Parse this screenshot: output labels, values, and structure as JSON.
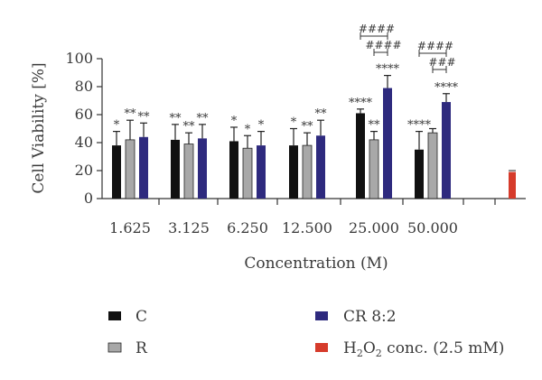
{
  "chart_data": {
    "type": "bar",
    "xlabel": "Concentration (M)",
    "ylabel": "Cell Viability [%]",
    "ylim": [
      0,
      100
    ],
    "yticks": [
      0,
      20,
      40,
      60,
      80,
      100
    ],
    "categories": [
      "1.625",
      "3.125",
      "6.250",
      "12.500",
      "25.000",
      "50.000"
    ],
    "series": [
      {
        "name": "C",
        "color": "#111111",
        "values": [
          38,
          42,
          41,
          38,
          61,
          35
        ],
        "errors": [
          10,
          11,
          10,
          12,
          3,
          13
        ],
        "annotations": [
          "*",
          "**",
          "*",
          "*",
          "****",
          "****"
        ]
      },
      {
        "name": "R",
        "color": "#a8a8a8",
        "values": [
          42,
          39,
          36,
          38,
          42,
          47
        ],
        "errors": [
          14,
          8,
          9,
          9,
          6,
          3
        ],
        "annotations": [
          "**",
          "**",
          "*",
          "**",
          "**",
          ""
        ]
      },
      {
        "name": "CR 8:2",
        "color": "#2e2a7e",
        "values": [
          44,
          43,
          38,
          45,
          79,
          69
        ],
        "errors": [
          10,
          10,
          10,
          11,
          9,
          6
        ],
        "annotations": [
          "**",
          "**",
          "*",
          "**",
          "****",
          "****"
        ]
      }
    ],
    "control": {
      "name_main": "H",
      "name_sub1": "2",
      "name_mid": "O",
      "name_sub2": "2",
      "name_rest": " conc. (2.5 mM)",
      "color": "#d63b2b",
      "value": 19,
      "error": 1
    },
    "brackets": [
      {
        "category": "25.000",
        "label": "####",
        "span": "C-CR 8:2",
        "level": 1
      },
      {
        "category": "25.000",
        "label": "####",
        "span": "R-CR 8:2",
        "level": 0
      },
      {
        "category": "50.000",
        "label": "####",
        "span": "C-CR 8:2",
        "level": 1
      },
      {
        "category": "50.000",
        "label": "###",
        "span": "R-CR 8:2",
        "level": 0
      }
    ],
    "legend": [
      "C",
      "R",
      "CR 8:2"
    ],
    "legend_position": "bottom",
    "grid": false
  }
}
